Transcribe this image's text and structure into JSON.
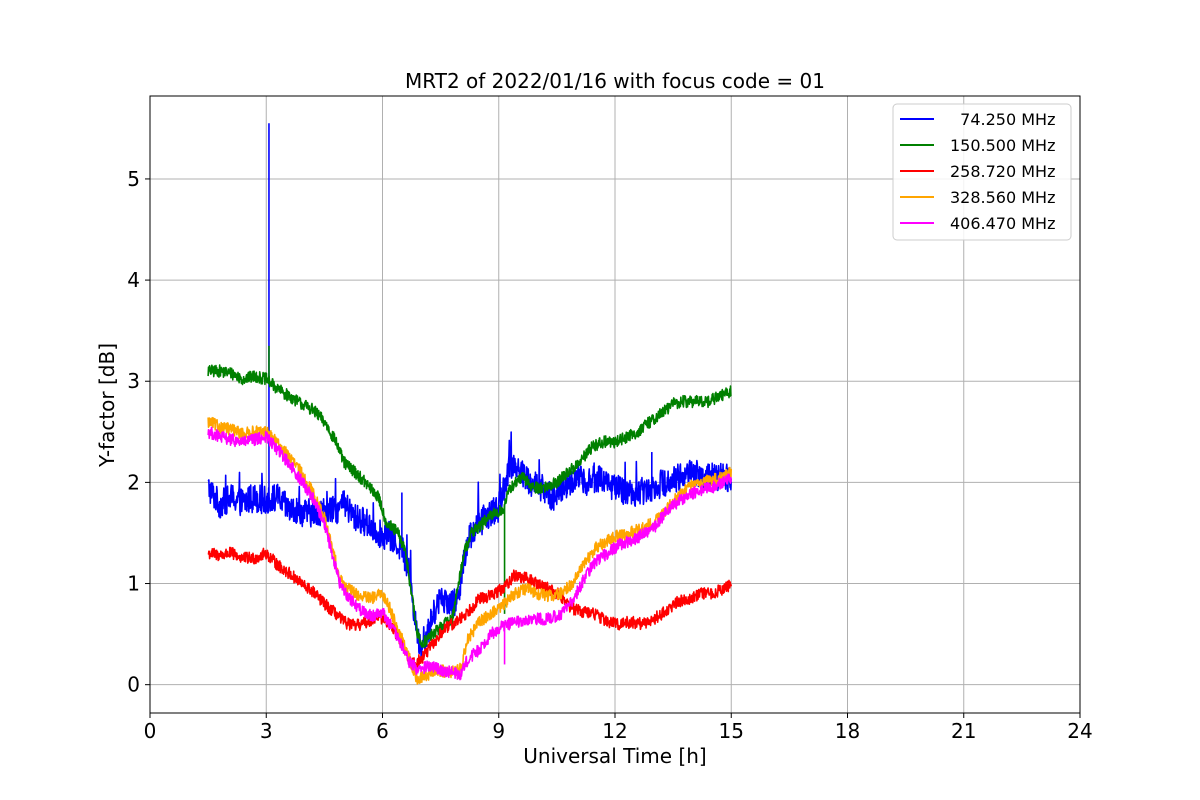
{
  "chart_data": {
    "type": "line",
    "title": "MRT2 of 2022/01/16 with focus code = 01",
    "xlabel": "Universal Time [h]",
    "ylabel": "Y-factor [dB]",
    "xlim": [
      0,
      24
    ],
    "ylim": [
      -0.28,
      5.82
    ],
    "xticks": [
      0,
      3,
      6,
      9,
      12,
      15,
      18,
      21,
      24
    ],
    "xtick_labels": [
      "0",
      "3",
      "6",
      "9",
      "12",
      "15",
      "18",
      "21",
      "24"
    ],
    "yticks": [
      0,
      1,
      2,
      3,
      4,
      5
    ],
    "ytick_labels": [
      "0",
      "1",
      "2",
      "3",
      "4",
      "5"
    ],
    "grid": true,
    "legend_position": "top-right",
    "series": [
      {
        "name": "  74.250 MHz",
        "color": "#0000ff",
        "points": [
          [
            1.5,
            1.95
          ],
          [
            1.8,
            1.78
          ],
          [
            2.1,
            1.85
          ],
          [
            2.4,
            1.8
          ],
          [
            2.7,
            1.85
          ],
          [
            3.0,
            1.82
          ],
          [
            3.3,
            1.85
          ],
          [
            3.6,
            1.72
          ],
          [
            3.9,
            1.7
          ],
          [
            4.2,
            1.7
          ],
          [
            4.5,
            1.72
          ],
          [
            4.8,
            1.72
          ],
          [
            5.0,
            1.78
          ],
          [
            5.3,
            1.65
          ],
          [
            5.6,
            1.6
          ],
          [
            5.9,
            1.5
          ],
          [
            6.2,
            1.45
          ],
          [
            6.5,
            1.35
          ],
          [
            6.7,
            1.1
          ],
          [
            6.85,
            0.6
          ],
          [
            7.0,
            0.35
          ],
          [
            7.2,
            0.55
          ],
          [
            7.4,
            0.8
          ],
          [
            7.6,
            0.85
          ],
          [
            7.9,
            0.8
          ],
          [
            8.1,
            1.2
          ],
          [
            8.2,
            1.45
          ],
          [
            8.5,
            1.6
          ],
          [
            8.8,
            1.7
          ],
          [
            9.0,
            1.75
          ],
          [
            9.2,
            2.05
          ],
          [
            9.4,
            2.2
          ],
          [
            9.6,
            2.1
          ],
          [
            9.8,
            2.0
          ],
          [
            10.1,
            1.95
          ],
          [
            10.4,
            1.85
          ],
          [
            10.7,
            1.95
          ],
          [
            11.0,
            2.05
          ],
          [
            11.3,
            2.0
          ],
          [
            11.6,
            2.05
          ],
          [
            12.0,
            1.95
          ],
          [
            12.3,
            1.9
          ],
          [
            12.6,
            1.9
          ],
          [
            12.9,
            1.95
          ],
          [
            13.3,
            2.0
          ],
          [
            13.6,
            2.05
          ],
          [
            14.0,
            2.1
          ],
          [
            14.4,
            2.05
          ],
          [
            14.7,
            2.05
          ],
          [
            15.0,
            2.05
          ]
        ],
        "spikes": [
          [
            3.07,
            5.55
          ],
          [
            6.5,
            1.9
          ],
          [
            12.95,
            2.3
          ]
        ]
      },
      {
        "name": "150.500 MHz",
        "color": "#008000",
        "points": [
          [
            1.5,
            3.1
          ],
          [
            1.8,
            3.1
          ],
          [
            2.1,
            3.08
          ],
          [
            2.4,
            3.02
          ],
          [
            2.7,
            3.05
          ],
          [
            3.0,
            3.02
          ],
          [
            3.3,
            2.92
          ],
          [
            3.6,
            2.85
          ],
          [
            3.9,
            2.78
          ],
          [
            4.2,
            2.72
          ],
          [
            4.5,
            2.6
          ],
          [
            4.8,
            2.4
          ],
          [
            5.0,
            2.2
          ],
          [
            5.3,
            2.1
          ],
          [
            5.6,
            1.98
          ],
          [
            5.9,
            1.85
          ],
          [
            6.1,
            1.6
          ],
          [
            6.4,
            1.5
          ],
          [
            6.6,
            1.3
          ],
          [
            6.75,
            0.9
          ],
          [
            6.9,
            0.5
          ],
          [
            7.0,
            0.4
          ],
          [
            7.3,
            0.5
          ],
          [
            7.6,
            0.6
          ],
          [
            7.8,
            0.65
          ],
          [
            8.1,
            1.3
          ],
          [
            8.3,
            1.5
          ],
          [
            8.6,
            1.6
          ],
          [
            8.9,
            1.7
          ],
          [
            9.1,
            1.72
          ],
          [
            9.3,
            1.95
          ],
          [
            9.6,
            2.05
          ],
          [
            9.9,
            1.95
          ],
          [
            10.2,
            1.95
          ],
          [
            10.5,
            2.0
          ],
          [
            10.8,
            2.1
          ],
          [
            11.1,
            2.2
          ],
          [
            11.4,
            2.35
          ],
          [
            11.7,
            2.4
          ],
          [
            12.0,
            2.4
          ],
          [
            12.3,
            2.45
          ],
          [
            12.6,
            2.5
          ],
          [
            12.9,
            2.6
          ],
          [
            13.2,
            2.68
          ],
          [
            13.5,
            2.78
          ],
          [
            13.8,
            2.8
          ],
          [
            14.1,
            2.8
          ],
          [
            14.4,
            2.8
          ],
          [
            14.7,
            2.85
          ],
          [
            15.0,
            2.9
          ]
        ],
        "spikes": [
          [
            3.07,
            3.35
          ],
          [
            9.15,
            0.7
          ]
        ]
      },
      {
        "name": "258.720 MHz",
        "color": "#ff0000",
        "points": [
          [
            1.5,
            1.3
          ],
          [
            1.8,
            1.28
          ],
          [
            2.1,
            1.3
          ],
          [
            2.4,
            1.25
          ],
          [
            2.7,
            1.25
          ],
          [
            3.0,
            1.3
          ],
          [
            3.3,
            1.18
          ],
          [
            3.6,
            1.1
          ],
          [
            3.9,
            1.0
          ],
          [
            4.2,
            0.92
          ],
          [
            4.5,
            0.8
          ],
          [
            4.8,
            0.7
          ],
          [
            5.0,
            0.62
          ],
          [
            5.3,
            0.58
          ],
          [
            5.6,
            0.62
          ],
          [
            5.9,
            0.68
          ],
          [
            6.2,
            0.6
          ],
          [
            6.5,
            0.42
          ],
          [
            6.75,
            0.2
          ],
          [
            7.0,
            0.25
          ],
          [
            7.3,
            0.4
          ],
          [
            7.6,
            0.55
          ],
          [
            7.9,
            0.62
          ],
          [
            8.2,
            0.72
          ],
          [
            8.5,
            0.85
          ],
          [
            8.8,
            0.88
          ],
          [
            9.1,
            0.95
          ],
          [
            9.4,
            1.08
          ],
          [
            9.7,
            1.05
          ],
          [
            10.0,
            1.0
          ],
          [
            10.3,
            0.95
          ],
          [
            10.6,
            0.88
          ],
          [
            10.9,
            0.75
          ],
          [
            11.2,
            0.72
          ],
          [
            11.5,
            0.7
          ],
          [
            11.8,
            0.62
          ],
          [
            12.1,
            0.6
          ],
          [
            12.4,
            0.62
          ],
          [
            12.7,
            0.6
          ],
          [
            13.0,
            0.65
          ],
          [
            13.3,
            0.72
          ],
          [
            13.6,
            0.82
          ],
          [
            13.9,
            0.85
          ],
          [
            14.2,
            0.9
          ],
          [
            14.5,
            0.9
          ],
          [
            14.8,
            0.95
          ],
          [
            15.0,
            0.98
          ]
        ],
        "spikes": []
      },
      {
        "name": "328.560 MHz",
        "color": "#ffa500",
        "points": [
          [
            1.5,
            2.6
          ],
          [
            1.8,
            2.55
          ],
          [
            2.1,
            2.52
          ],
          [
            2.4,
            2.48
          ],
          [
            2.7,
            2.5
          ],
          [
            3.0,
            2.5
          ],
          [
            3.3,
            2.38
          ],
          [
            3.6,
            2.25
          ],
          [
            3.9,
            2.1
          ],
          [
            4.2,
            1.9
          ],
          [
            4.5,
            1.65
          ],
          [
            4.7,
            1.35
          ],
          [
            4.9,
            1.05
          ],
          [
            5.1,
            0.95
          ],
          [
            5.4,
            0.88
          ],
          [
            5.7,
            0.85
          ],
          [
            6.0,
            0.9
          ],
          [
            6.2,
            0.75
          ],
          [
            6.5,
            0.45
          ],
          [
            6.7,
            0.25
          ],
          [
            6.9,
            0.05
          ],
          [
            7.1,
            0.08
          ],
          [
            7.4,
            0.15
          ],
          [
            7.7,
            0.12
          ],
          [
            8.0,
            0.15
          ],
          [
            8.2,
            0.45
          ],
          [
            8.5,
            0.62
          ],
          [
            8.8,
            0.7
          ],
          [
            9.1,
            0.78
          ],
          [
            9.4,
            0.9
          ],
          [
            9.7,
            0.95
          ],
          [
            10.0,
            0.9
          ],
          [
            10.3,
            0.88
          ],
          [
            10.6,
            0.9
          ],
          [
            10.9,
            1.0
          ],
          [
            11.2,
            1.2
          ],
          [
            11.5,
            1.35
          ],
          [
            11.8,
            1.42
          ],
          [
            12.1,
            1.48
          ],
          [
            12.4,
            1.5
          ],
          [
            12.7,
            1.55
          ],
          [
            13.0,
            1.6
          ],
          [
            13.3,
            1.72
          ],
          [
            13.6,
            1.85
          ],
          [
            13.9,
            1.95
          ],
          [
            14.2,
            2.0
          ],
          [
            14.5,
            2.02
          ],
          [
            14.8,
            2.05
          ],
          [
            15.0,
            2.1
          ]
        ],
        "spikes": []
      },
      {
        "name": "406.470 MHz",
        "color": "#ff00ff",
        "points": [
          [
            1.5,
            2.5
          ],
          [
            1.8,
            2.45
          ],
          [
            2.1,
            2.42
          ],
          [
            2.4,
            2.4
          ],
          [
            2.7,
            2.42
          ],
          [
            3.0,
            2.45
          ],
          [
            3.3,
            2.32
          ],
          [
            3.6,
            2.18
          ],
          [
            3.9,
            2.02
          ],
          [
            4.2,
            1.85
          ],
          [
            4.5,
            1.6
          ],
          [
            4.7,
            1.3
          ],
          [
            4.9,
            1.0
          ],
          [
            5.1,
            0.88
          ],
          [
            5.4,
            0.75
          ],
          [
            5.7,
            0.68
          ],
          [
            6.0,
            0.72
          ],
          [
            6.2,
            0.6
          ],
          [
            6.5,
            0.38
          ],
          [
            6.7,
            0.22
          ],
          [
            6.9,
            0.15
          ],
          [
            7.2,
            0.18
          ],
          [
            7.5,
            0.15
          ],
          [
            7.8,
            0.12
          ],
          [
            8.0,
            0.1
          ],
          [
            8.2,
            0.25
          ],
          [
            8.5,
            0.35
          ],
          [
            8.8,
            0.5
          ],
          [
            9.1,
            0.58
          ],
          [
            9.4,
            0.62
          ],
          [
            9.7,
            0.62
          ],
          [
            10.0,
            0.65
          ],
          [
            10.3,
            0.65
          ],
          [
            10.6,
            0.7
          ],
          [
            10.9,
            0.82
          ],
          [
            11.2,
            1.05
          ],
          [
            11.5,
            1.22
          ],
          [
            11.8,
            1.3
          ],
          [
            12.1,
            1.38
          ],
          [
            12.4,
            1.42
          ],
          [
            12.7,
            1.48
          ],
          [
            13.0,
            1.55
          ],
          [
            13.3,
            1.7
          ],
          [
            13.6,
            1.8
          ],
          [
            13.9,
            1.88
          ],
          [
            14.2,
            1.92
          ],
          [
            14.5,
            1.95
          ],
          [
            14.8,
            2.0
          ],
          [
            15.0,
            2.05
          ]
        ],
        "spikes": [
          [
            9.15,
            0.2
          ]
        ]
      }
    ]
  }
}
